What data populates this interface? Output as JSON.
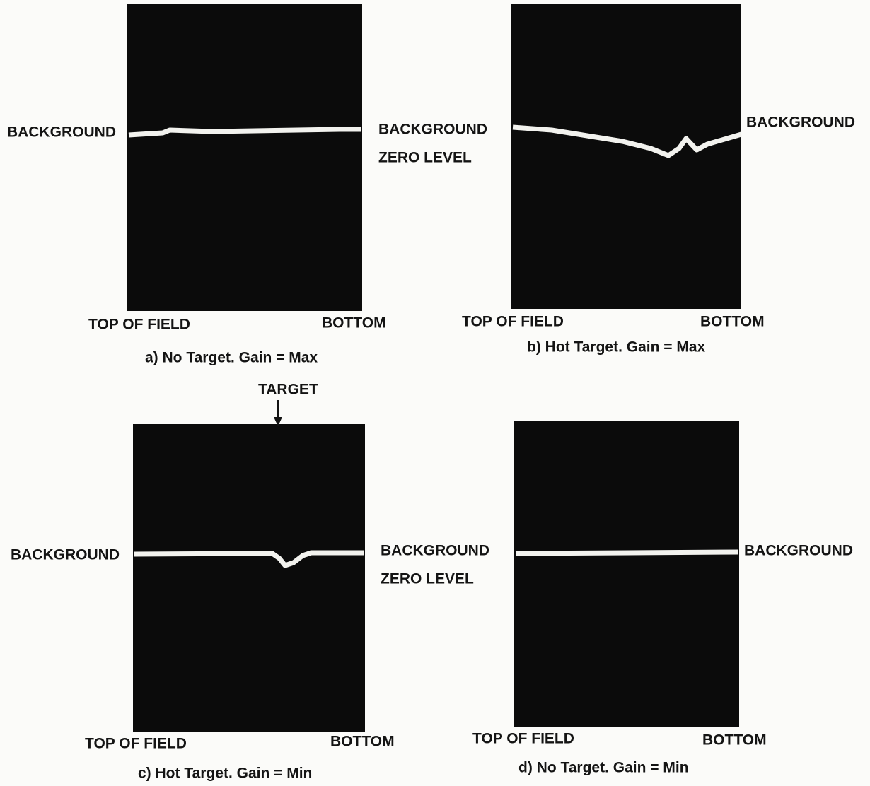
{
  "panels": [
    {
      "left_label": "BACKGROUND",
      "right_label": "BACKGROUND",
      "right_label_2": "ZERO LEVEL",
      "x_start": "TOP OF FIELD",
      "x_end": "BOTTOM",
      "caption": "a) No Target. Gain = Max"
    },
    {
      "right_label": "BACKGROUND",
      "x_start": "TOP OF FIELD",
      "x_end": "BOTTOM",
      "caption": "b) Hot Target. Gain = Max"
    },
    {
      "marker": "TARGET",
      "left_label": "BACKGROUND",
      "right_label": "BACKGROUND",
      "right_label_2": "ZERO LEVEL",
      "x_start": "TOP OF FIELD",
      "x_end": "BOTTOM",
      "caption": "c) Hot Target. Gain = Min"
    },
    {
      "right_label": "BACKGROUND",
      "x_start": "TOP OF FIELD",
      "x_end": "BOTTOM",
      "caption": "d) No Target. Gain = Min"
    }
  ]
}
